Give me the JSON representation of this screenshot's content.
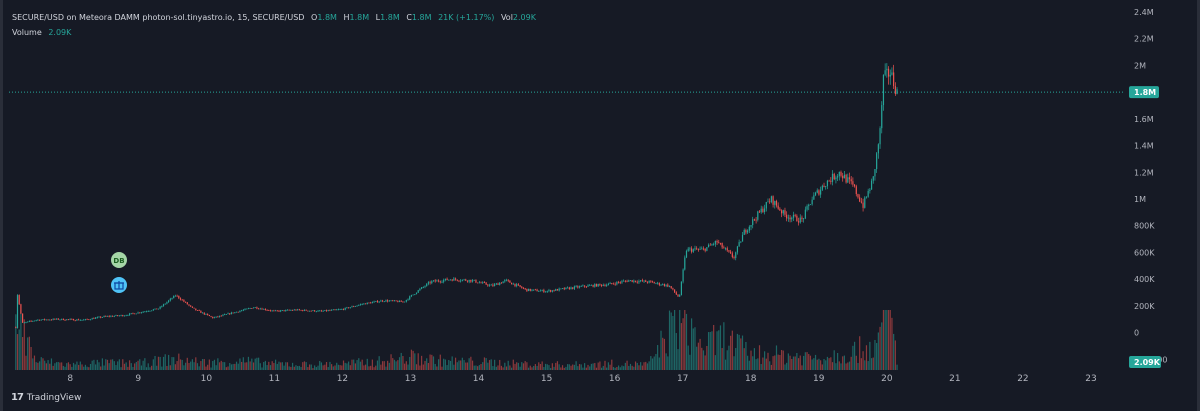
{
  "legend": {
    "symbol": "SECURE/USD on Meteora DAMM photon-sol.tinyastro.io, 15, SECURE/USD",
    "o_label": "O",
    "o_value": "1.8M",
    "h_label": "H",
    "h_value": "1.8M",
    "l_label": "L",
    "l_value": "1.8M",
    "c_label": "C",
    "c_value": "1.8M",
    "change": "21K (+1.17%)",
    "vol_label": "Vol",
    "vol_value": "2.09K",
    "volume_label": "Volume",
    "volume_value": "2.09K"
  },
  "badges": {
    "current_price": "1.8M",
    "current_volume": "2.09K",
    "marker1_text": "DB",
    "marker2_icon": "gift-icon"
  },
  "watermark": {
    "logo": "17",
    "text": "TradingView"
  },
  "colors": {
    "background": "#161a25",
    "up": "#26a69a",
    "down": "#ef5350",
    "axis_text": "#b2b5be"
  },
  "chart_data": {
    "type": "candlestick",
    "title": "SECURE/USD on Meteora DAMM photon-sol.tinyastro.io, 15, SECURE/USD",
    "interval": "15",
    "y_ticks": [
      "2.4M",
      "2.2M",
      "2M",
      "1.8M",
      "1.6M",
      "1.4M",
      "1.2M",
      "1M",
      "800K",
      "600K",
      "400K",
      "200K",
      "0",
      "-200000"
    ],
    "y_tick_values": [
      2400000,
      2200000,
      2000000,
      1800000,
      1600000,
      1400000,
      1200000,
      1000000,
      800000,
      600000,
      400000,
      200000,
      0,
      -200000
    ],
    "x_ticks": [
      "8",
      "9",
      "10",
      "11",
      "12",
      "13",
      "14",
      "15",
      "16",
      "17",
      "18",
      "19",
      "20",
      "21",
      "22",
      "23"
    ],
    "x_tick_values": [
      8,
      9,
      10,
      11,
      12,
      13,
      14,
      15,
      16,
      17,
      18,
      19,
      20,
      21,
      22,
      23
    ],
    "ylim": [
      -280000,
      2400000
    ],
    "xlim": [
      7.1,
      23.5
    ],
    "last_price": 1800000,
    "price_path": [
      [
        7.2,
        40000
      ],
      [
        7.22,
        300000
      ],
      [
        7.3,
        70000
      ],
      [
        7.5,
        95000
      ],
      [
        7.8,
        100000
      ],
      [
        8.2,
        95000
      ],
      [
        8.5,
        120000
      ],
      [
        8.8,
        130000
      ],
      [
        9.0,
        150000
      ],
      [
        9.3,
        180000
      ],
      [
        9.55,
        280000
      ],
      [
        9.8,
        180000
      ],
      [
        10.1,
        110000
      ],
      [
        10.4,
        150000
      ],
      [
        10.7,
        190000
      ],
      [
        11.0,
        160000
      ],
      [
        11.3,
        170000
      ],
      [
        11.7,
        160000
      ],
      [
        12.0,
        175000
      ],
      [
        12.3,
        215000
      ],
      [
        12.6,
        240000
      ],
      [
        12.9,
        230000
      ],
      [
        13.1,
        310000
      ],
      [
        13.3,
        380000
      ],
      [
        13.6,
        400000
      ],
      [
        13.9,
        390000
      ],
      [
        14.2,
        350000
      ],
      [
        14.4,
        390000
      ],
      [
        14.7,
        320000
      ],
      [
        15.0,
        310000
      ],
      [
        15.3,
        330000
      ],
      [
        15.6,
        350000
      ],
      [
        15.9,
        360000
      ],
      [
        16.2,
        390000
      ],
      [
        16.5,
        380000
      ],
      [
        16.8,
        350000
      ],
      [
        16.95,
        260000
      ],
      [
        17.05,
        620000
      ],
      [
        17.3,
        620000
      ],
      [
        17.5,
        680000
      ],
      [
        17.75,
        560000
      ],
      [
        17.9,
        750000
      ],
      [
        18.1,
        880000
      ],
      [
        18.3,
        1000000
      ],
      [
        18.5,
        880000
      ],
      [
        18.75,
        840000
      ],
      [
        18.9,
        1000000
      ],
      [
        19.1,
        1120000
      ],
      [
        19.3,
        1200000
      ],
      [
        19.5,
        1100000
      ],
      [
        19.65,
        950000
      ],
      [
        19.8,
        1150000
      ],
      [
        19.9,
        1500000
      ],
      [
        19.95,
        1900000
      ],
      [
        20.05,
        1950000
      ],
      [
        20.15,
        1800000
      ]
    ],
    "volume_path": [
      [
        7.2,
        60
      ],
      [
        7.5,
        10
      ],
      [
        8.0,
        6
      ],
      [
        8.5,
        8
      ],
      [
        9.0,
        7
      ],
      [
        9.5,
        12
      ],
      [
        10.0,
        8
      ],
      [
        10.5,
        10
      ],
      [
        11.0,
        7
      ],
      [
        11.5,
        6
      ],
      [
        12.0,
        7
      ],
      [
        12.5,
        9
      ],
      [
        13.0,
        14
      ],
      [
        13.5,
        10
      ],
      [
        14.0,
        9
      ],
      [
        14.5,
        7
      ],
      [
        15.0,
        6
      ],
      [
        15.5,
        6
      ],
      [
        16.0,
        7
      ],
      [
        16.5,
        6
      ],
      [
        16.95,
        60
      ],
      [
        17.3,
        25
      ],
      [
        17.6,
        35
      ],
      [
        18.0,
        18
      ],
      [
        18.5,
        16
      ],
      [
        19.0,
        14
      ],
      [
        19.5,
        20
      ],
      [
        19.9,
        30
      ],
      [
        20.0,
        90
      ],
      [
        20.15,
        10
      ]
    ]
  }
}
